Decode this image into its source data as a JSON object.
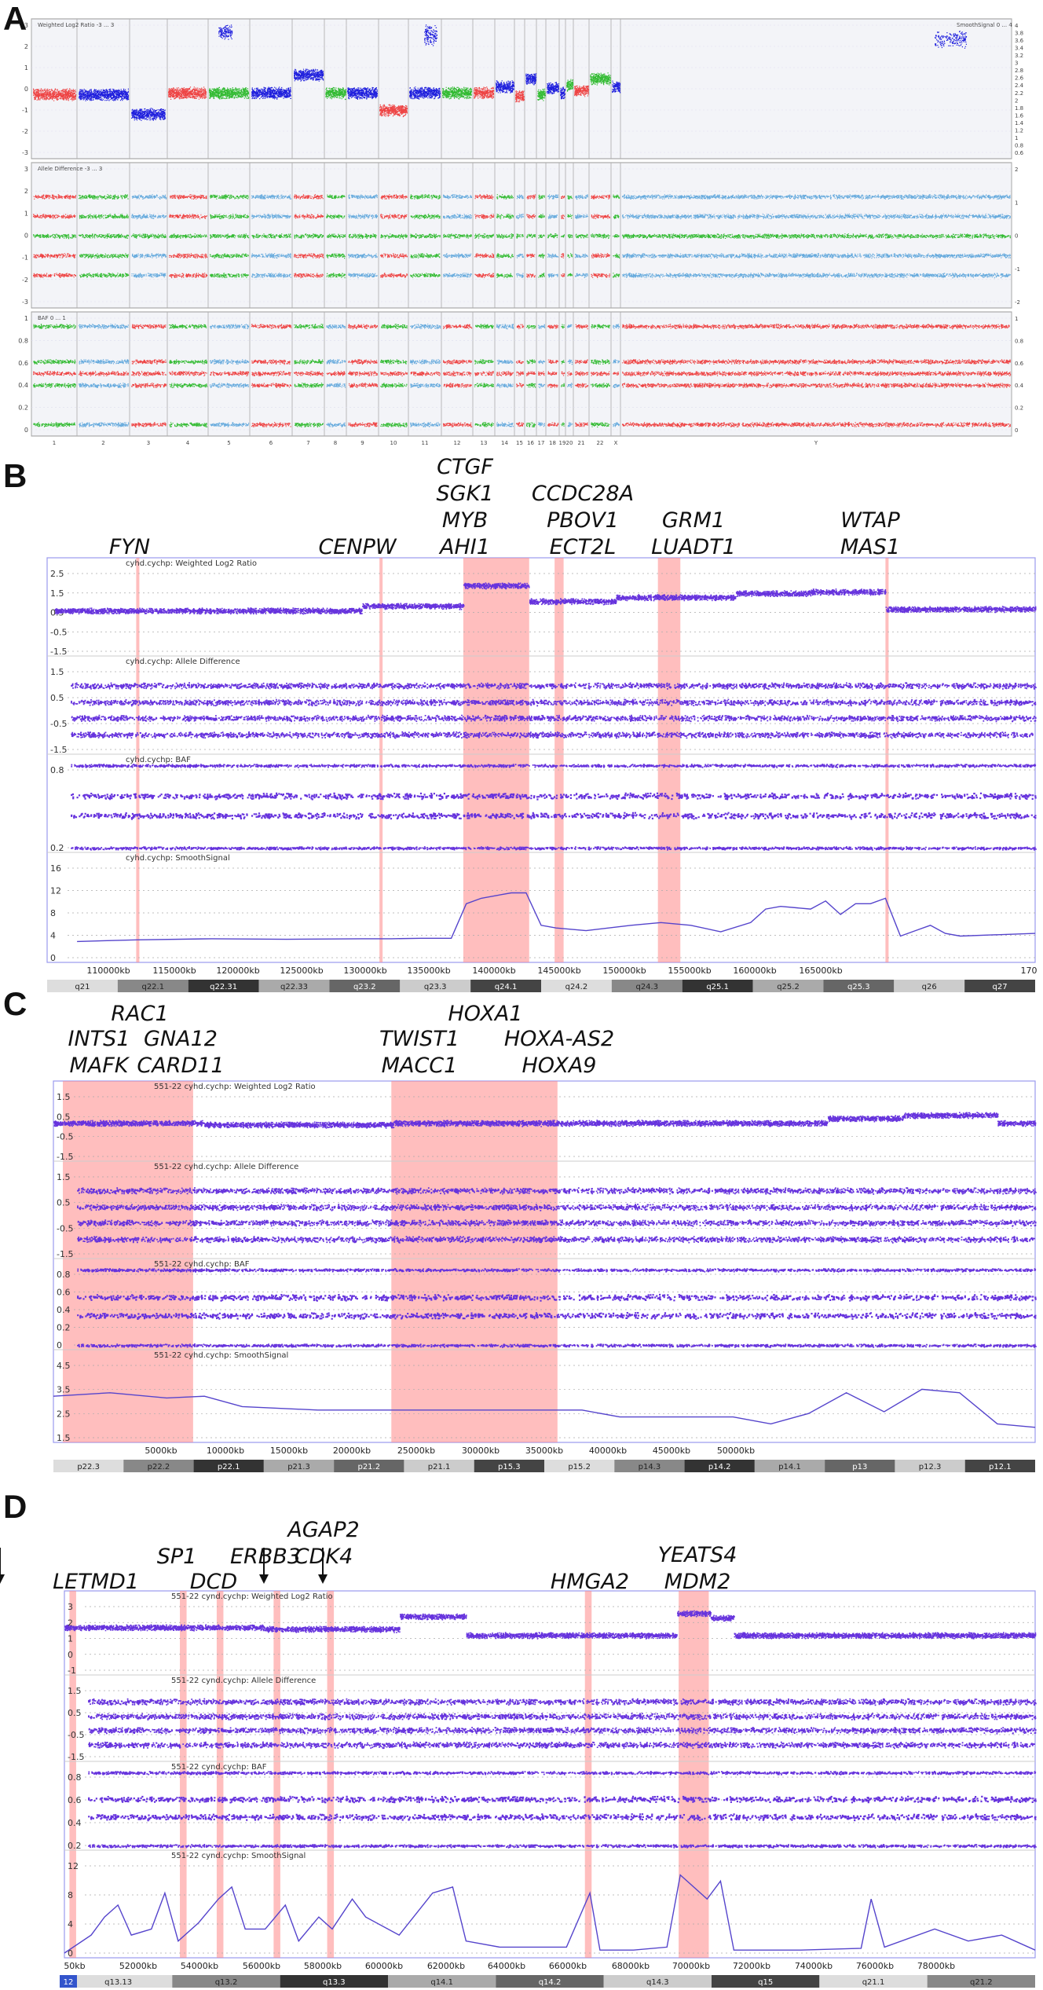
{
  "panels": [
    {
      "letter": "A"
    },
    {
      "letter": "B"
    },
    {
      "letter": "C"
    },
    {
      "letter": "D"
    }
  ],
  "colors": {
    "purple": "#6633dd",
    "red": "#ee4444",
    "green": "#33bb33",
    "blue": "#1f1fdd",
    "lightblue": "#66aadd",
    "highlight": "#ff8888"
  },
  "chart_data": [
    {
      "panel": "A",
      "type": "scatter",
      "title": "",
      "tracks": [
        {
          "label": "Weighted Log2 Ratio  -3 ... 3",
          "right_label": "SmoothSignal  0 ... 4",
          "yticks": [
            "3",
            "2",
            "1",
            "0",
            "-1",
            "-2",
            "-3"
          ],
          "right_ticks": [
            "4",
            "3.8",
            "3.6",
            "3.4",
            "3.2",
            "3",
            "2.8",
            "2.6",
            "2.4",
            "2.2",
            "2",
            "1.8",
            "1.6",
            "1.4",
            "1.2",
            "1",
            "0.8",
            "0.6"
          ]
        },
        {
          "label": "Allele Difference  -3 ... 3",
          "yticks": [
            "3",
            "2",
            "1",
            "0",
            "-1",
            "-2",
            "-3"
          ],
          "right_ticks": [
            "2",
            "1",
            "0",
            "-1",
            "-2"
          ]
        },
        {
          "label": "BAF  0 ... 1",
          "yticks": [
            "1",
            "0.8",
            "0.6",
            "0.4",
            "0.2",
            "0"
          ],
          "right_ticks": [
            "1",
            "0.8",
            "0.6",
            "0.4",
            "0.2",
            "0"
          ]
        }
      ],
      "chromosomes": [
        "1",
        "2",
        "3",
        "4",
        "5",
        "6",
        "7",
        "8",
        "9",
        "10",
        "11",
        "12",
        "13",
        "14",
        "15",
        "16",
        "17",
        "18",
        "19",
        "20",
        "21",
        "22",
        "X",
        "Y"
      ]
    },
    {
      "panel": "B",
      "type": "scatter",
      "title": "",
      "tracks": [
        {
          "label": "cyhd.cychp: Weighted Log2 Ratio",
          "yticks": [
            "2.5",
            "1.5",
            "0.5",
            "-0.5",
            "-1.5"
          ]
        },
        {
          "label": "cyhd.cychp: Allele Difference",
          "yticks": [
            "1.5",
            "0.5",
            "-0.5",
            "-1.5"
          ]
        },
        {
          "label": "cyhd.cychp: BAF",
          "yticks": [
            "0.8",
            "0.2"
          ]
        },
        {
          "label": "cyhd.cychp: SmoothSignal",
          "yticks": [
            "16",
            "12",
            "8",
            "4",
            "0"
          ]
        }
      ],
      "x_ticks": [
        "110000kb",
        "115000kb",
        "120000kb",
        "125000kb",
        "130000kb",
        "135000kb",
        "140000kb",
        "145000kb",
        "150000kb",
        "155000kb",
        "160000kb",
        "165000kb",
        "170"
      ],
      "bands": [
        "q21",
        "q22.1",
        "q22.31",
        "q22.33",
        "q23.2",
        "q23.3",
        "q24.1",
        "q24.2",
        "q24.3",
        "q25.1",
        "q25.2",
        "q25.3",
        "q26",
        "q27"
      ],
      "genes": [
        {
          "lines": [
            "FYN"
          ],
          "x_kb": 110000
        },
        {
          "lines": [
            "CENPW"
          ],
          "x_kb": 126000
        },
        {
          "lines": [
            "CTGF",
            "SGK1",
            "MYB",
            "AHI1"
          ],
          "x_kb": 133600
        },
        {
          "lines": [
            "CCDC28A",
            "PBOV1",
            "ECT2L"
          ],
          "x_kb": 138800
        },
        {
          "lines": [
            "GRM1",
            "LUADT1"
          ],
          "x_kb": 146000
        },
        {
          "lines": [
            "WTAP",
            "MAS1"
          ],
          "x_kb": 160000
        }
      ],
      "highlights_kb": [
        [
          109950,
          110100
        ],
        [
          126200,
          126350
        ],
        [
          131800,
          136200
        ],
        [
          137900,
          138500
        ],
        [
          144800,
          146300
        ],
        [
          160000,
          160200
        ]
      ],
      "smooth_signal": {
        "x_kb": [
          106000,
          110000,
          115000,
          120000,
          125000,
          127000,
          129000,
          131000,
          132000,
          133000,
          134000,
          135000,
          136000,
          137000,
          138000,
          140000,
          143000,
          145000,
          147000,
          149000,
          151000,
          152000,
          153000,
          155000,
          156000,
          157000,
          158000,
          159000,
          160000,
          161000,
          162000,
          163000,
          164000,
          165000,
          167000,
          170000
        ],
        "values": [
          3,
          3.3,
          3.5,
          3.4,
          3.5,
          3.5,
          3.6,
          3.6,
          10,
          11,
          11.5,
          12,
          12,
          6,
          5.5,
          5,
          6,
          6.5,
          6,
          4.8,
          6.5,
          9,
          9.5,
          9,
          10.5,
          8,
          10,
          10,
          11,
          4,
          5,
          6,
          4.5,
          4,
          4.2,
          4.5
        ]
      }
    },
    {
      "panel": "C",
      "type": "scatter",
      "title": "",
      "tracks": [
        {
          "label": "551-22   cyhd.cychp: Weighted Log2 Ratio",
          "yticks": [
            "1.5",
            "0.5",
            "-0.5",
            "-1.5"
          ]
        },
        {
          "label": "551-22   cyhd.cychp: Allele Difference",
          "yticks": [
            "1.5",
            "0.5",
            "-0.5",
            "-1.5"
          ]
        },
        {
          "label": "551-22   cyhd.cychp: BAF",
          "yticks": [
            "0.8",
            "0.6",
            "0.4",
            "0.2",
            "0"
          ]
        },
        {
          "label": "551-22   cyhd.cychp: SmoothSignal",
          "yticks": [
            "4.5",
            "3.5",
            "2.5",
            "1.5"
          ]
        }
      ],
      "x_ticks": [
        "5000kb",
        "10000kb",
        "15000kb",
        "20000kb",
        "25000kb",
        "30000kb",
        "35000kb",
        "40000kb",
        "45000kb",
        "50000kb"
      ],
      "bands": [
        "p22.3",
        "p22.2",
        "p22.1",
        "p21.3",
        "p21.2",
        "p21.1",
        "p15.3",
        "p15.2",
        "p14.3",
        "p14.2",
        "p14.1",
        "p13",
        "p12.3",
        "p12.1"
      ],
      "genes": [
        {
          "lines": [
            "RAC1"
          ],
          "x_kb": 6300
        },
        {
          "lines": [
            "INTS1",
            "MAFK"
          ],
          "x_kb": 1700
        },
        {
          "lines": [
            "GNA12",
            "CARD11"
          ],
          "x_kb": 3300
        },
        {
          "lines": [
            "TWIST1",
            "MACC1"
          ],
          "x_kb": 19700
        },
        {
          "lines": [
            "HOXA1"
          ],
          "x_kb": 27100
        },
        {
          "lines": [
            "HOXA-AS2",
            "HOXA9"
          ],
          "x_kb": 27200
        }
      ],
      "highlights_kb": [
        [
          500,
          7400
        ],
        [
          17900,
          26700
        ]
      ],
      "smooth_signal": {
        "x_kb": [
          0,
          3000,
          6000,
          8000,
          10000,
          14000,
          18000,
          22000,
          26000,
          28000,
          30000,
          32000,
          34000,
          36000,
          38000,
          40000,
          42000,
          44000,
          46000,
          48000,
          50000,
          52000
        ],
        "values": [
          3.4,
          3.6,
          3.3,
          3.4,
          2.8,
          2.6,
          2.6,
          2.6,
          2.6,
          2.6,
          2.2,
          2.2,
          2.2,
          2.2,
          1.8,
          2.4,
          3.6,
          2.5,
          3.8,
          3.6,
          1.8,
          1.6
        ]
      }
    },
    {
      "panel": "D",
      "type": "scatter",
      "title": "",
      "tracks": [
        {
          "label": "551-22   cynd.cychp: Weighted Log2 Ratio",
          "yticks": [
            "3",
            "2",
            "1",
            "0",
            "-1"
          ]
        },
        {
          "label": "551-22   cynd.cychp: Allele Difference",
          "yticks": [
            "1.5",
            "0.5",
            "-0.5",
            "-1.5"
          ]
        },
        {
          "label": "551-22   cynd.cychp: BAF",
          "yticks": [
            "0.8",
            "0.6",
            "0.4",
            "0.2"
          ]
        },
        {
          "label": "551-22   cynd.cychp: SmoothSignal",
          "yticks": [
            "12",
            "8",
            "4",
            "0"
          ]
        }
      ],
      "x_ticks": [
        "50kb",
        "52000kb",
        "54000kb",
        "56000kb",
        "58000kb",
        "60000kb",
        "62000kb",
        "64000kb",
        "66000kb",
        "68000kb",
        "70000kb",
        "72000kb",
        "74000kb",
        "76000kb",
        "78000kb"
      ],
      "bands": [
        "q13.13",
        "q13.2",
        "q13.3",
        "q14.1",
        "q14.2",
        "q14.3",
        "q15",
        "q21.1",
        "q21.2"
      ],
      "chrom_label": "12",
      "genes": [
        {
          "lines": [
            "LETMD1"
          ],
          "x_kb": 50300
        },
        {
          "lines": [
            "SP1"
          ],
          "x_kb": 53500,
          "arrow": true
        },
        {
          "lines": [
            "DCD"
          ],
          "x_kb": 54800
        },
        {
          "lines": [
            "ERBB3"
          ],
          "x_kb": 56300,
          "arrow": true
        },
        {
          "lines": [
            "AGAP2",
            "CDK4"
          ],
          "x_kb": 57900,
          "arrow": true
        },
        {
          "lines": [
            "HMGA2"
          ],
          "x_kb": 65700
        },
        {
          "lines": [
            "YEATS4",
            "MDM2"
          ],
          "x_kb": 69000
        }
      ],
      "highlights_kb": [
        [
          50150,
          50350
        ],
        [
          53450,
          53650
        ],
        [
          54550,
          54750
        ],
        [
          56250,
          56450
        ],
        [
          57850,
          58050
        ],
        [
          65550,
          65750
        ],
        [
          68350,
          69250
        ]
      ],
      "smooth_signal": {
        "x_kb": [
          50000,
          50800,
          51200,
          51600,
          52000,
          52600,
          53000,
          53400,
          54000,
          54600,
          55000,
          55400,
          56000,
          56600,
          57000,
          57600,
          58000,
          58600,
          59000,
          60000,
          61000,
          61600,
          62000,
          63000,
          65000,
          65700,
          66000,
          67000,
          68000,
          68400,
          69200,
          69600,
          70000,
          72000,
          73800,
          74100,
          74500,
          76000,
          77000,
          78000,
          79000
        ],
        "values": [
          0,
          3,
          6,
          8,
          3,
          4,
          10,
          2,
          5,
          9,
          11,
          4,
          4,
          8,
          2,
          6,
          4,
          9,
          6,
          3,
          10,
          11,
          2,
          1,
          1,
          10,
          0.5,
          0.5,
          1,
          13,
          9,
          12,
          0.5,
          0.5,
          0.8,
          9,
          1,
          4,
          2,
          3,
          0.5
        ]
      }
    }
  ]
}
